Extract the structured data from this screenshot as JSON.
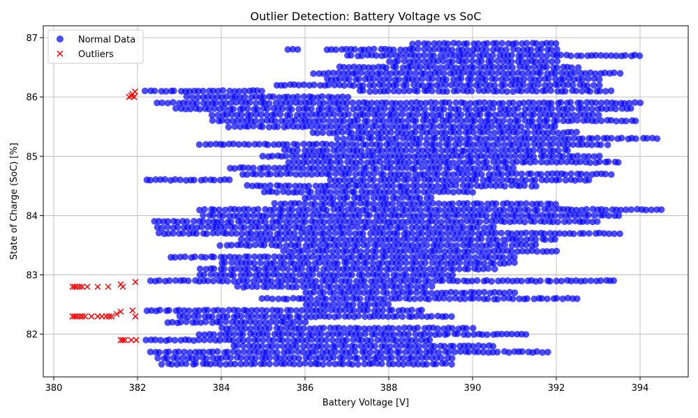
{
  "chart_data": {
    "type": "scatter",
    "title": "Outlier Detection: Battery Voltage vs SoC",
    "xlabel": "Battery Voltage [V]",
    "ylabel": "State of Charge (SoC) [%]",
    "xlim": [
      379.75,
      395.15
    ],
    "ylim": [
      81.28,
      87.2
    ],
    "xticks": [
      380,
      382,
      384,
      386,
      388,
      390,
      392,
      394
    ],
    "yticks": [
      82,
      83,
      84,
      85,
      86,
      87
    ],
    "grid": true,
    "legend_position": "top-left",
    "series": [
      {
        "name": "Normal Data",
        "marker": "circle",
        "color": "#0000ff",
        "bands": [
          [
            86.9,
            388.6,
            392.0
          ],
          [
            86.8,
            385.6,
            385.8
          ],
          [
            86.8,
            386.5,
            392.0
          ],
          [
            86.7,
            387.0,
            394.0
          ],
          [
            86.6,
            388.0,
            392.0
          ],
          [
            86.5,
            386.8,
            392.5
          ],
          [
            86.4,
            386.2,
            393.5
          ],
          [
            86.3,
            386.5,
            393.0
          ],
          [
            86.2,
            385.3,
            393.0
          ],
          [
            86.1,
            382.2,
            385.0
          ],
          [
            86.1,
            387.3,
            393.3
          ],
          [
            86.0,
            383.2,
            387.0
          ],
          [
            85.9,
            382.5,
            394.0
          ],
          [
            85.8,
            382.9,
            393.8
          ],
          [
            85.7,
            383.8,
            393.0
          ],
          [
            85.6,
            383.8,
            393.9
          ],
          [
            85.5,
            384.2,
            392.0
          ],
          [
            85.4,
            386.2,
            392.5
          ],
          [
            85.3,
            386.8,
            394.4
          ],
          [
            85.2,
            383.5,
            393.2
          ],
          [
            85.1,
            385.5,
            392.3
          ],
          [
            85.0,
            385.0,
            393.0
          ],
          [
            84.9,
            385.6,
            393.5
          ],
          [
            84.8,
            384.2,
            391.0
          ],
          [
            84.7,
            384.5,
            393.3
          ],
          [
            84.6,
            382.2,
            384.2
          ],
          [
            84.6,
            386.6,
            392.8
          ],
          [
            84.5,
            384.6,
            391.5
          ],
          [
            84.4,
            385.0,
            390.0
          ],
          [
            84.3,
            386.0,
            389.0
          ],
          [
            84.2,
            385.3,
            392.0
          ],
          [
            84.1,
            383.5,
            394.5
          ],
          [
            84.0,
            383.6,
            393.5
          ],
          [
            83.9,
            382.4,
            393.0
          ],
          [
            83.8,
            382.5,
            390.5
          ],
          [
            83.7,
            382.5,
            393.5
          ],
          [
            83.6,
            384.5,
            392.0
          ],
          [
            83.5,
            384.0,
            391.5
          ],
          [
            83.4,
            385.5,
            392.0
          ],
          [
            83.3,
            382.8,
            391.0
          ],
          [
            83.2,
            384.0,
            391.0
          ],
          [
            83.1,
            383.5,
            390.5
          ],
          [
            83.0,
            383.5,
            389.5
          ],
          [
            82.9,
            382.3,
            393.4
          ],
          [
            82.8,
            384.4,
            389.0
          ],
          [
            82.7,
            386.0,
            391.0
          ],
          [
            82.6,
            385.0,
            392.5
          ],
          [
            82.5,
            386.0,
            388.0
          ],
          [
            82.4,
            382.2,
            388.8
          ],
          [
            82.3,
            383.0,
            389.5
          ],
          [
            82.2,
            382.7,
            386.0
          ],
          [
            82.1,
            384.0,
            390.0
          ],
          [
            82.0,
            383.5,
            391.3
          ],
          [
            81.9,
            382.2,
            389.0
          ],
          [
            81.8,
            384.3,
            390.5
          ],
          [
            81.7,
            382.3,
            391.8
          ],
          [
            81.6,
            382.5,
            389.5
          ],
          [
            81.5,
            382.6,
            389.5
          ]
        ]
      },
      {
        "name": "Outliers",
        "marker": "x",
        "color": "#ff0000",
        "points": [
          [
            381.8,
            86.0
          ],
          [
            381.88,
            86.05
          ],
          [
            381.94,
            86.09
          ],
          [
            381.85,
            86.02
          ],
          [
            381.92,
            86.0
          ],
          [
            380.45,
            82.8
          ],
          [
            380.5,
            82.8
          ],
          [
            380.55,
            82.8
          ],
          [
            380.62,
            82.8
          ],
          [
            380.68,
            82.8
          ],
          [
            380.8,
            82.8
          ],
          [
            381.05,
            82.8
          ],
          [
            381.3,
            82.8
          ],
          [
            381.6,
            82.84
          ],
          [
            381.65,
            82.8
          ],
          [
            381.95,
            82.88
          ],
          [
            380.45,
            82.3
          ],
          [
            380.5,
            82.3
          ],
          [
            380.55,
            82.3
          ],
          [
            380.62,
            82.3
          ],
          [
            380.68,
            82.3
          ],
          [
            380.75,
            82.3
          ],
          [
            380.9,
            82.3
          ],
          [
            381.05,
            82.3
          ],
          [
            381.15,
            82.3
          ],
          [
            381.25,
            82.3
          ],
          [
            381.32,
            82.3
          ],
          [
            381.38,
            82.3
          ],
          [
            381.5,
            82.34
          ],
          [
            381.6,
            82.38
          ],
          [
            381.88,
            82.4
          ],
          [
            381.95,
            82.3
          ],
          [
            381.6,
            81.9
          ],
          [
            381.65,
            81.9
          ],
          [
            381.7,
            81.9
          ],
          [
            381.85,
            81.9
          ],
          [
            381.97,
            81.9
          ]
        ]
      }
    ]
  }
}
